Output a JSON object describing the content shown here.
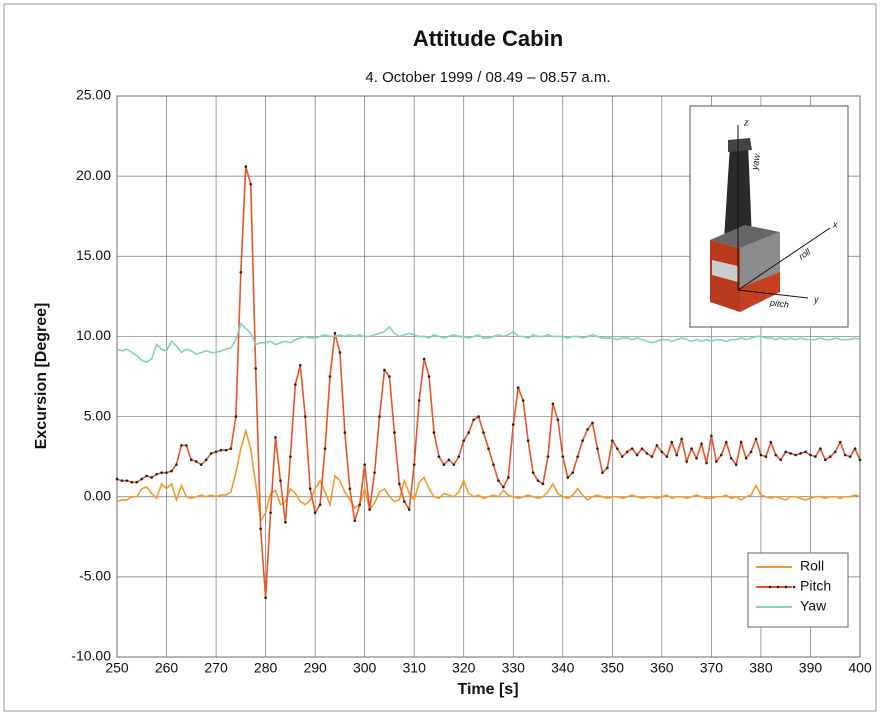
{
  "chart_data": {
    "type": "line",
    "title": "Attitude Cabin",
    "subtitle": "4. October 1999 / 08.49 – 08.57 a.m.",
    "xlabel": "Time [s]",
    "ylabel": "Excursion [Degree]",
    "annotations": [
      "z",
      "yaw",
      "x",
      "roll",
      "pitch",
      "y"
    ],
    "x": [
      250,
      251,
      252,
      253,
      254,
      255,
      256,
      257,
      258,
      259,
      260,
      261,
      262,
      263,
      264,
      265,
      266,
      267,
      268,
      269,
      270,
      271,
      272,
      273,
      274,
      275,
      276,
      277,
      278,
      279,
      280,
      281,
      282,
      283,
      284,
      285,
      286,
      287,
      288,
      289,
      290,
      291,
      292,
      293,
      294,
      295,
      296,
      297,
      298,
      299,
      300,
      301,
      302,
      303,
      304,
      305,
      306,
      307,
      308,
      309,
      310,
      311,
      312,
      313,
      314,
      315,
      316,
      317,
      318,
      319,
      320,
      321,
      322,
      323,
      324,
      325,
      326,
      327,
      328,
      329,
      330,
      331,
      332,
      333,
      334,
      335,
      336,
      337,
      338,
      339,
      340,
      341,
      342,
      343,
      344,
      345,
      346,
      347,
      348,
      349,
      350,
      351,
      352,
      353,
      354,
      355,
      356,
      357,
      358,
      359,
      360,
      361,
      362,
      363,
      364,
      365,
      366,
      367,
      368,
      369,
      370,
      371,
      372,
      373,
      374,
      375,
      376,
      377,
      378,
      379,
      380,
      381,
      382,
      383,
      384,
      385,
      386,
      387,
      388,
      389,
      390,
      391,
      392,
      393,
      394,
      395,
      396,
      397,
      398,
      399,
      400
    ],
    "series": [
      {
        "name": "Roll",
        "color": "#f39a2c",
        "markers": false,
        "values": [
          -0.3,
          -0.2,
          -0.2,
          0.0,
          0.0,
          0.5,
          0.6,
          0.2,
          -0.1,
          0.8,
          0.5,
          0.8,
          -0.2,
          0.7,
          0.0,
          -0.1,
          0.0,
          0.1,
          0.0,
          0.1,
          0.0,
          0.1,
          0.1,
          0.3,
          1.5,
          3.0,
          4.1,
          3.0,
          0.8,
          -1.5,
          -1.0,
          0.2,
          0.4,
          -0.5,
          -0.3,
          0.5,
          0.2,
          -0.3,
          -0.5,
          -0.2,
          0.5,
          1.0,
          0.3,
          -0.5,
          1.3,
          1.0,
          0.3,
          -0.2,
          -0.7,
          -0.5,
          0.5,
          -0.8,
          -0.4,
          0.3,
          0.5,
          0.0,
          -0.3,
          -0.2,
          1.0,
          0.2,
          -0.2,
          0.9,
          1.2,
          0.5,
          0.0,
          -0.1,
          0.2,
          0.1,
          0.0,
          0.3,
          1.0,
          0.2,
          0.0,
          0.1,
          -0.1,
          0.0,
          0.1,
          0.0,
          0.4,
          0.1,
          0.0,
          -0.1,
          0.0,
          0.1,
          0.0,
          -0.1,
          0.0,
          0.3,
          0.8,
          0.2,
          0.0,
          -0.1,
          0.1,
          0.5,
          0.1,
          -0.2,
          0.0,
          0.1,
          0.0,
          -0.1,
          0.0,
          0.0,
          -0.1,
          0.0,
          0.1,
          0.0,
          -0.1,
          0.0,
          0.0,
          -0.1,
          0.0,
          0.1,
          -0.1,
          0.0,
          0.0,
          -0.1,
          0.0,
          0.1,
          0.0,
          -0.1,
          -0.1,
          0.0,
          0.0,
          0.1,
          -0.1,
          0.0,
          -0.2,
          0.0,
          0.1,
          0.7,
          0.1,
          0.0,
          -0.1,
          0.0,
          -0.1,
          -0.2,
          0.0,
          0.0,
          -0.1,
          -0.2,
          -0.1,
          0.0,
          0.0,
          -0.1,
          0.0,
          0.0,
          -0.1,
          0.0,
          0.0,
          0.1,
          0.0
        ]
      },
      {
        "name": "Pitch",
        "color": "#e8552a",
        "markers": true,
        "values": [
          1.1,
          1.0,
          1.0,
          0.9,
          0.9,
          1.1,
          1.3,
          1.2,
          1.4,
          1.5,
          1.5,
          1.6,
          2.0,
          3.2,
          3.2,
          2.3,
          2.2,
          2.0,
          2.3,
          2.7,
          2.8,
          2.9,
          2.9,
          3.0,
          5.0,
          14.0,
          20.6,
          19.5,
          8.0,
          -2.0,
          -6.3,
          -1.0,
          3.7,
          1.0,
          -1.6,
          2.5,
          7.0,
          8.2,
          5.0,
          0.5,
          -1.0,
          -0.5,
          3.0,
          7.5,
          10.2,
          9.0,
          4.0,
          0.5,
          -1.5,
          -0.5,
          2.0,
          -0.8,
          1.5,
          5.0,
          7.9,
          7.5,
          4.0,
          0.8,
          -0.3,
          -0.8,
          2.0,
          6.0,
          8.6,
          7.5,
          4.0,
          2.5,
          2.0,
          2.3,
          2.0,
          2.5,
          3.5,
          4.0,
          4.8,
          5.0,
          4.0,
          3.0,
          2.0,
          1.0,
          0.6,
          1.2,
          4.5,
          6.8,
          6.0,
          3.5,
          1.5,
          1.0,
          0.8,
          2.5,
          5.8,
          4.8,
          2.5,
          1.2,
          1.5,
          2.5,
          3.5,
          4.2,
          4.6,
          3.0,
          1.5,
          1.8,
          3.5,
          3.0,
          2.5,
          2.8,
          3.0,
          2.6,
          3.0,
          2.7,
          2.5,
          3.2,
          2.8,
          2.5,
          3.4,
          2.6,
          3.6,
          2.2,
          3.0,
          2.4,
          3.3,
          2.1,
          3.8,
          2.2,
          2.6,
          3.4,
          2.4,
          2.0,
          3.4,
          2.4,
          2.8,
          3.6,
          2.6,
          2.5,
          3.4,
          2.6,
          2.3,
          2.8,
          2.7,
          2.6,
          2.7,
          2.8,
          2.6,
          2.5,
          3.0,
          2.3,
          2.5,
          2.8,
          3.4,
          2.6,
          2.5,
          3.0,
          2.3
        ]
      },
      {
        "name": "Yaw",
        "color": "#7fd3c3",
        "markers": false,
        "values": [
          9.2,
          9.1,
          9.2,
          9.0,
          8.8,
          8.5,
          8.4,
          8.6,
          9.5,
          9.2,
          9.1,
          9.7,
          9.4,
          9.0,
          9.2,
          9.1,
          8.9,
          9.0,
          9.1,
          9.0,
          9.0,
          9.1,
          9.2,
          9.3,
          9.8,
          10.8,
          10.5,
          10.2,
          9.5,
          9.6,
          9.6,
          9.7,
          9.5,
          9.6,
          9.7,
          9.6,
          9.8,
          9.9,
          10.0,
          9.9,
          9.9,
          10.0,
          10.1,
          10.0,
          10.0,
          10.1,
          10.0,
          10.1,
          10.0,
          10.1,
          10.0,
          10.0,
          10.1,
          10.2,
          10.3,
          10.6,
          10.2,
          10.0,
          10.1,
          10.2,
          10.1,
          10.0,
          10.0,
          9.9,
          10.1,
          10.0,
          9.9,
          10.0,
          10.1,
          10.0,
          10.0,
          9.9,
          10.0,
          10.1,
          9.9,
          9.9,
          10.0,
          10.1,
          10.0,
          10.1,
          10.3,
          10.0,
          10.0,
          9.9,
          10.1,
          10.0,
          10.0,
          10.1,
          10.0,
          10.0,
          10.0,
          9.9,
          10.0,
          10.0,
          9.9,
          10.0,
          10.1,
          10.0,
          9.9,
          9.9,
          9.9,
          9.8,
          9.9,
          9.9,
          9.8,
          9.9,
          9.8,
          9.7,
          9.6,
          9.7,
          9.8,
          9.8,
          9.7,
          9.8,
          9.9,
          9.8,
          9.7,
          9.8,
          9.7,
          9.8,
          9.7,
          9.8,
          9.8,
          9.7,
          9.8,
          9.8,
          9.9,
          9.8,
          9.9,
          10.0,
          10.0,
          9.9,
          9.9,
          9.8,
          9.9,
          9.8,
          9.9,
          9.8,
          9.9,
          9.8,
          9.8,
          9.8,
          9.9,
          9.8,
          9.8,
          9.9,
          9.8,
          9.8,
          9.8,
          9.9,
          9.8
        ]
      }
    ],
    "xlim": [
      250,
      400
    ],
    "ylim": [
      -10,
      25
    ],
    "xticks": [
      250,
      260,
      270,
      280,
      290,
      300,
      310,
      320,
      330,
      340,
      350,
      360,
      370,
      380,
      390,
      400
    ],
    "yticks": [
      {
        "value": -10,
        "label": "-10.00"
      },
      {
        "value": -5,
        "label": "-5.00"
      },
      {
        "value": 0,
        "label": "0.00"
      },
      {
        "value": 5,
        "label": "5.00"
      },
      {
        "value": 10,
        "label": "10.00"
      },
      {
        "value": 15,
        "label": "15.00"
      },
      {
        "value": 20,
        "label": "20.00"
      },
      {
        "value": 25,
        "label": "25.00"
      }
    ],
    "grid": true,
    "legend": "lower right"
  }
}
